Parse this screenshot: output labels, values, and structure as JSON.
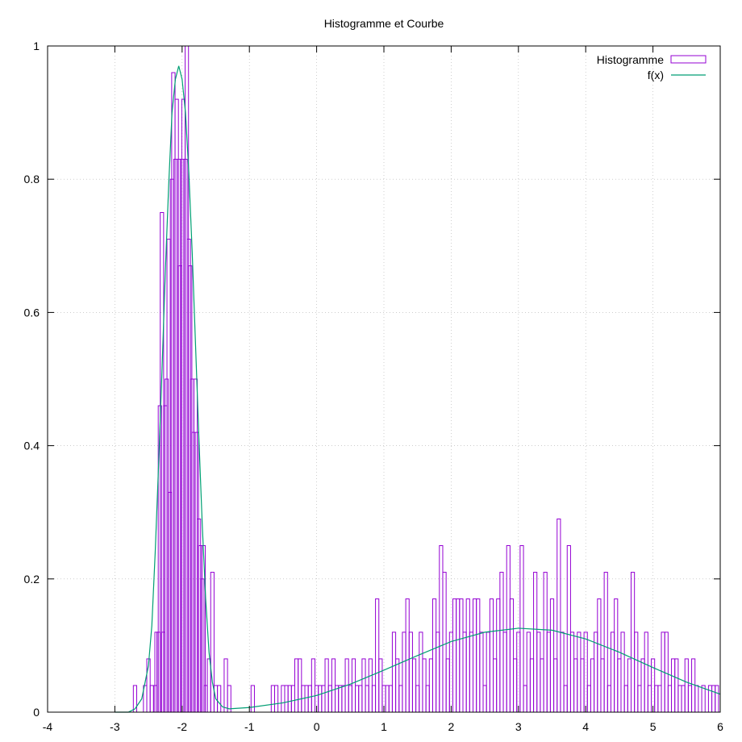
{
  "chart_data": {
    "type": "bar",
    "title": "Histogramme et Courbe",
    "xlabel": "",
    "ylabel": "",
    "xlim": [
      -4,
      6
    ],
    "ylim": [
      0,
      1
    ],
    "x_ticks": [
      -4,
      -3,
      -2,
      -1,
      0,
      1,
      2,
      3,
      4,
      5,
      6
    ],
    "y_ticks": [
      0,
      0.2,
      0.4,
      0.6,
      0.8,
      1
    ],
    "x_tick_labels": [
      "-4",
      "-3",
      "-2",
      "-1",
      "0",
      "1",
      "2",
      "3",
      "4",
      "5",
      "6"
    ],
    "y_tick_labels": [
      "0",
      "0.2",
      "0.4",
      "0.6",
      "0.8",
      "1"
    ],
    "grid": true,
    "legend_position": "top-right",
    "colors": {
      "histogram": "#9400d3",
      "curve": "#009e73"
    },
    "series": [
      {
        "name": "Histogramme",
        "type": "histogram",
        "bin_width": 0.05,
        "points": [
          [
            -2.7,
            0.04
          ],
          [
            -2.55,
            0.04
          ],
          [
            -2.5,
            0.08
          ],
          [
            -2.45,
            0.04
          ],
          [
            -2.4,
            0.04
          ],
          [
            -2.38,
            0.12
          ],
          [
            -2.35,
            0.12
          ],
          [
            -2.33,
            0.46
          ],
          [
            -2.3,
            0.75
          ],
          [
            -2.28,
            0.12
          ],
          [
            -2.25,
            0.46
          ],
          [
            -2.23,
            0.5
          ],
          [
            -2.2,
            0.71
          ],
          [
            -2.18,
            0.33
          ],
          [
            -2.15,
            0.8
          ],
          [
            -2.13,
            0.96
          ],
          [
            -2.1,
            0.83
          ],
          [
            -2.08,
            0.92
          ],
          [
            -2.05,
            0.83
          ],
          [
            -2.03,
            0.67
          ],
          [
            -2.0,
            0.83
          ],
          [
            -1.98,
            0.92
          ],
          [
            -1.95,
            0.83
          ],
          [
            -1.93,
            1.0
          ],
          [
            -1.9,
            0.71
          ],
          [
            -1.88,
            0.67
          ],
          [
            -1.85,
            0.5
          ],
          [
            -1.83,
            0.42
          ],
          [
            -1.8,
            0.5
          ],
          [
            -1.78,
            0.42
          ],
          [
            -1.75,
            0.29
          ],
          [
            -1.73,
            0.25
          ],
          [
            -1.7,
            0.2
          ],
          [
            -1.68,
            0.25
          ],
          [
            -1.65,
            0.04
          ],
          [
            -1.6,
            0.08
          ],
          [
            -1.55,
            0.21
          ],
          [
            -1.5,
            0.04
          ],
          [
            -1.45,
            0.04
          ],
          [
            -1.35,
            0.08
          ],
          [
            -1.3,
            0.04
          ],
          [
            -0.95,
            0.04
          ],
          [
            -0.65,
            0.04
          ],
          [
            -0.6,
            0.04
          ],
          [
            -0.5,
            0.04
          ],
          [
            -0.45,
            0.04
          ],
          [
            -0.4,
            0.04
          ],
          [
            -0.35,
            0.04
          ],
          [
            -0.3,
            0.08
          ],
          [
            -0.25,
            0.08
          ],
          [
            -0.2,
            0.04
          ],
          [
            -0.15,
            0.04
          ],
          [
            -0.1,
            0.04
          ],
          [
            -0.05,
            0.08
          ],
          [
            0.0,
            0.04
          ],
          [
            0.05,
            0.04
          ],
          [
            0.1,
            0.04
          ],
          [
            0.15,
            0.08
          ],
          [
            0.2,
            0.04
          ],
          [
            0.25,
            0.08
          ],
          [
            0.3,
            0.04
          ],
          [
            0.35,
            0.04
          ],
          [
            0.4,
            0.04
          ],
          [
            0.45,
            0.08
          ],
          [
            0.5,
            0.04
          ],
          [
            0.55,
            0.08
          ],
          [
            0.6,
            0.04
          ],
          [
            0.65,
            0.04
          ],
          [
            0.7,
            0.08
          ],
          [
            0.75,
            0.04
          ],
          [
            0.8,
            0.08
          ],
          [
            0.85,
            0.04
          ],
          [
            0.9,
            0.17
          ],
          [
            0.95,
            0.08
          ],
          [
            1.0,
            0.04
          ],
          [
            1.05,
            0.04
          ],
          [
            1.1,
            0.04
          ],
          [
            1.15,
            0.12
          ],
          [
            1.2,
            0.08
          ],
          [
            1.25,
            0.04
          ],
          [
            1.3,
            0.12
          ],
          [
            1.35,
            0.17
          ],
          [
            1.4,
            0.12
          ],
          [
            1.45,
            0.08
          ],
          [
            1.5,
            0.04
          ],
          [
            1.55,
            0.12
          ],
          [
            1.6,
            0.08
          ],
          [
            1.65,
            0.04
          ],
          [
            1.7,
            0.08
          ],
          [
            1.75,
            0.17
          ],
          [
            1.8,
            0.12
          ],
          [
            1.85,
            0.25
          ],
          [
            1.9,
            0.21
          ],
          [
            1.95,
            0.08
          ],
          [
            2.0,
            0.12
          ],
          [
            2.05,
            0.17
          ],
          [
            2.1,
            0.17
          ],
          [
            2.15,
            0.17
          ],
          [
            2.2,
            0.12
          ],
          [
            2.25,
            0.17
          ],
          [
            2.3,
            0.12
          ],
          [
            2.35,
            0.17
          ],
          [
            2.4,
            0.17
          ],
          [
            2.45,
            0.12
          ],
          [
            2.5,
            0.04
          ],
          [
            2.55,
            0.12
          ],
          [
            2.6,
            0.17
          ],
          [
            2.65,
            0.08
          ],
          [
            2.7,
            0.17
          ],
          [
            2.75,
            0.21
          ],
          [
            2.8,
            0.12
          ],
          [
            2.85,
            0.25
          ],
          [
            2.9,
            0.17
          ],
          [
            2.95,
            0.08
          ],
          [
            3.0,
            0.12
          ],
          [
            3.05,
            0.25
          ],
          [
            3.1,
            0.04
          ],
          [
            3.15,
            0.12
          ],
          [
            3.2,
            0.08
          ],
          [
            3.25,
            0.21
          ],
          [
            3.3,
            0.12
          ],
          [
            3.35,
            0.08
          ],
          [
            3.4,
            0.21
          ],
          [
            3.45,
            0.12
          ],
          [
            3.5,
            0.17
          ],
          [
            3.55,
            0.08
          ],
          [
            3.6,
            0.29
          ],
          [
            3.65,
            0.12
          ],
          [
            3.7,
            0.04
          ],
          [
            3.75,
            0.25
          ],
          [
            3.8,
            0.12
          ],
          [
            3.85,
            0.08
          ],
          [
            3.9,
            0.12
          ],
          [
            3.95,
            0.08
          ],
          [
            4.0,
            0.12
          ],
          [
            4.05,
            0.04
          ],
          [
            4.1,
            0.08
          ],
          [
            4.15,
            0.12
          ],
          [
            4.2,
            0.17
          ],
          [
            4.25,
            0.08
          ],
          [
            4.3,
            0.21
          ],
          [
            4.35,
            0.04
          ],
          [
            4.4,
            0.12
          ],
          [
            4.45,
            0.17
          ],
          [
            4.5,
            0.08
          ],
          [
            4.55,
            0.12
          ],
          [
            4.6,
            0.04
          ],
          [
            4.65,
            0.08
          ],
          [
            4.7,
            0.21
          ],
          [
            4.75,
            0.12
          ],
          [
            4.8,
            0.04
          ],
          [
            4.85,
            0.08
          ],
          [
            4.9,
            0.12
          ],
          [
            4.95,
            0.04
          ],
          [
            5.0,
            0.08
          ],
          [
            5.05,
            0.04
          ],
          [
            5.1,
            0.04
          ],
          [
            5.15,
            0.12
          ],
          [
            5.2,
            0.12
          ],
          [
            5.25,
            0.04
          ],
          [
            5.3,
            0.08
          ],
          [
            5.35,
            0.08
          ],
          [
            5.4,
            0.04
          ],
          [
            5.45,
            0.04
          ],
          [
            5.5,
            0.08
          ],
          [
            5.55,
            0.04
          ],
          [
            5.6,
            0.08
          ],
          [
            5.65,
            0.04
          ],
          [
            5.75,
            0.04
          ],
          [
            5.85,
            0.04
          ],
          [
            5.9,
            0.04
          ],
          [
            5.95,
            0.04
          ]
        ]
      },
      {
        "name": "f(x)",
        "type": "line",
        "points": [
          [
            -3.0,
            0.0
          ],
          [
            -2.8,
            0.0
          ],
          [
            -2.7,
            0.005
          ],
          [
            -2.6,
            0.02
          ],
          [
            -2.5,
            0.07
          ],
          [
            -2.45,
            0.13
          ],
          [
            -2.4,
            0.24
          ],
          [
            -2.35,
            0.37
          ],
          [
            -2.3,
            0.51
          ],
          [
            -2.25,
            0.66
          ],
          [
            -2.2,
            0.79
          ],
          [
            -2.15,
            0.9
          ],
          [
            -2.1,
            0.95
          ],
          [
            -2.05,
            0.97
          ],
          [
            -2.0,
            0.95
          ],
          [
            -1.95,
            0.9
          ],
          [
            -1.9,
            0.81
          ],
          [
            -1.85,
            0.69
          ],
          [
            -1.8,
            0.55
          ],
          [
            -1.75,
            0.41
          ],
          [
            -1.7,
            0.28
          ],
          [
            -1.65,
            0.17
          ],
          [
            -1.6,
            0.09
          ],
          [
            -1.55,
            0.045
          ],
          [
            -1.5,
            0.02
          ],
          [
            -1.4,
            0.008
          ],
          [
            -1.3,
            0.005
          ],
          [
            -1.0,
            0.007
          ],
          [
            -0.5,
            0.014
          ],
          [
            0.0,
            0.025
          ],
          [
            0.5,
            0.042
          ],
          [
            1.0,
            0.063
          ],
          [
            1.5,
            0.085
          ],
          [
            2.0,
            0.106
          ],
          [
            2.5,
            0.12
          ],
          [
            3.0,
            0.126
          ],
          [
            3.5,
            0.123
          ],
          [
            4.0,
            0.11
          ],
          [
            4.5,
            0.09
          ],
          [
            5.0,
            0.067
          ],
          [
            5.5,
            0.045
          ],
          [
            6.0,
            0.027
          ]
        ]
      }
    ]
  }
}
